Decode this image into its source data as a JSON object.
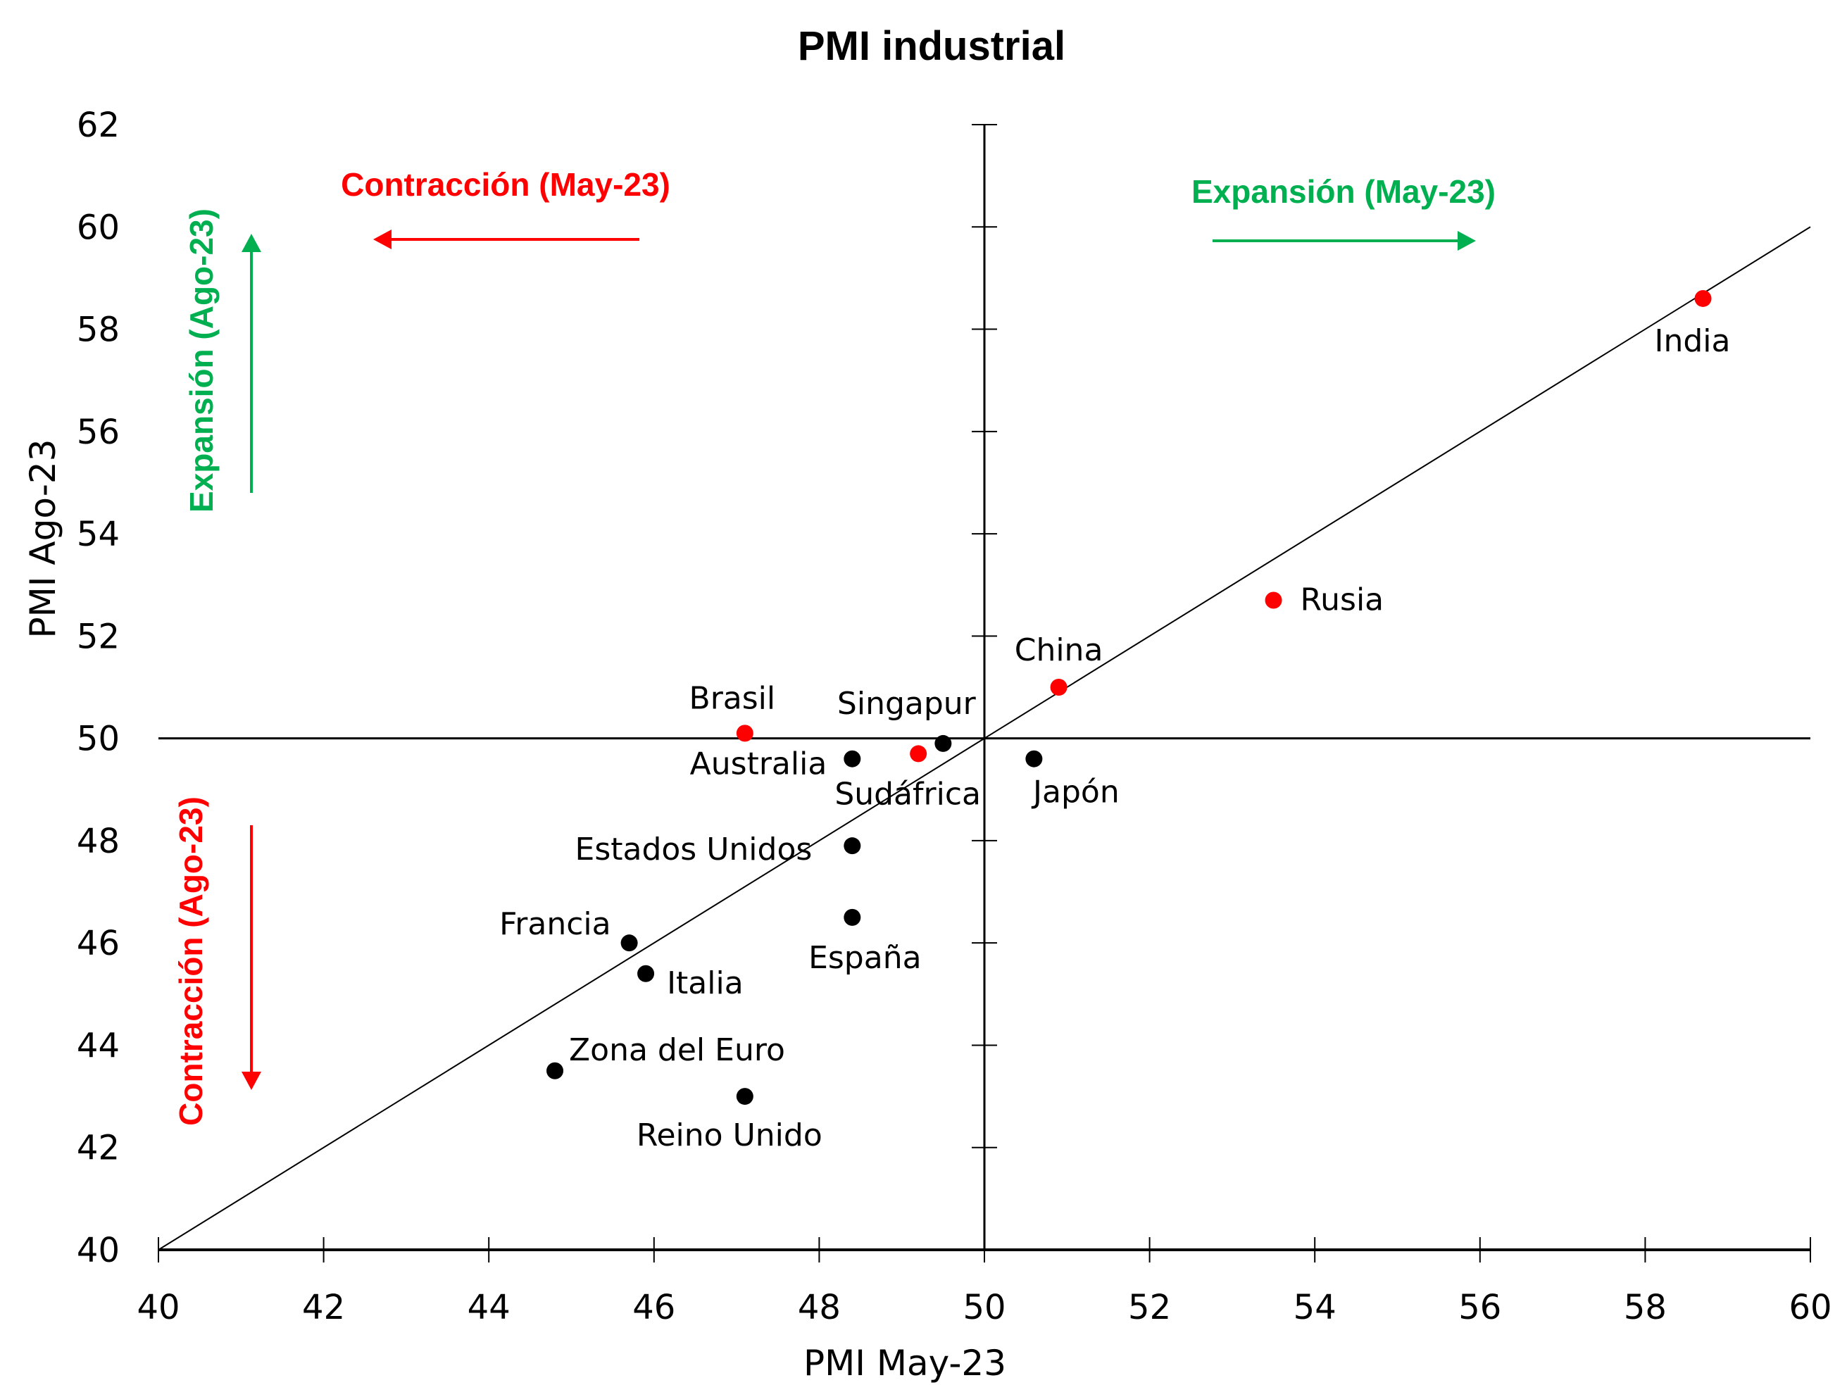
{
  "chart_data": {
    "type": "scatter",
    "title": "PMI industrial",
    "xlabel": "PMI May-23",
    "ylabel": "PMI Ago-23",
    "xlim": [
      40,
      60
    ],
    "ylim": [
      40,
      62
    ],
    "xticks": [
      "40",
      "42",
      "44",
      "46",
      "48",
      "50",
      "52",
      "54",
      "56",
      "58",
      "60"
    ],
    "yticks": [
      "40",
      "42",
      "44",
      "46",
      "48",
      "50",
      "52",
      "54",
      "56",
      "58",
      "60",
      "62"
    ],
    "reference_lines": {
      "horizontal": 50,
      "vertical": 50,
      "diagonal": "y = x"
    },
    "colors": {
      "highlight": "#ff0000",
      "default": "#000000",
      "expansion": "#00b050",
      "contraction": "#ff0000"
    },
    "points": [
      {
        "name": "India",
        "x": 58.7,
        "y": 58.6,
        "color": "#ff0000",
        "label_pos": "below"
      },
      {
        "name": "Rusia",
        "x": 53.5,
        "y": 52.7,
        "color": "#ff0000",
        "label_pos": "right"
      },
      {
        "name": "China",
        "x": 50.9,
        "y": 51.0,
        "color": "#ff0000",
        "label_pos": "above"
      },
      {
        "name": "Brasil",
        "x": 47.1,
        "y": 50.1,
        "color": "#ff0000",
        "label_pos": "above"
      },
      {
        "name": "Singapur",
        "x": 49.5,
        "y": 49.9,
        "color": "#000000",
        "label_pos": "above-left"
      },
      {
        "name": "Sudáfrica",
        "x": 49.2,
        "y": 49.7,
        "color": "#ff0000",
        "label_pos": "below"
      },
      {
        "name": "Australia",
        "x": 48.4,
        "y": 49.6,
        "color": "#000000",
        "label_pos": "left"
      },
      {
        "name": "Japón",
        "x": 50.6,
        "y": 49.6,
        "color": "#000000",
        "label_pos": "below-right"
      },
      {
        "name": "Estados Unidos",
        "x": 48.4,
        "y": 47.9,
        "color": "#000000",
        "label_pos": "left"
      },
      {
        "name": "España",
        "x": 48.4,
        "y": 46.5,
        "color": "#000000",
        "label_pos": "below"
      },
      {
        "name": "Francia",
        "x": 45.7,
        "y": 46.0,
        "color": "#000000",
        "label_pos": "above-left"
      },
      {
        "name": "Italia",
        "x": 45.9,
        "y": 45.4,
        "color": "#000000",
        "label_pos": "below-right"
      },
      {
        "name": "Zona del Euro",
        "x": 44.8,
        "y": 43.5,
        "color": "#000000",
        "label_pos": "above-right"
      },
      {
        "name": "Reino Unido",
        "x": 47.1,
        "y": 43.0,
        "color": "#000000",
        "label_pos": "below"
      }
    ],
    "annotations": {
      "contraction_may": "Contracción (May-23)",
      "expansion_may": "Expansión (May-23)",
      "expansion_ago": "Expansión (Ago-23)",
      "contraction_ago": "Contracción (Ago-23)"
    }
  }
}
